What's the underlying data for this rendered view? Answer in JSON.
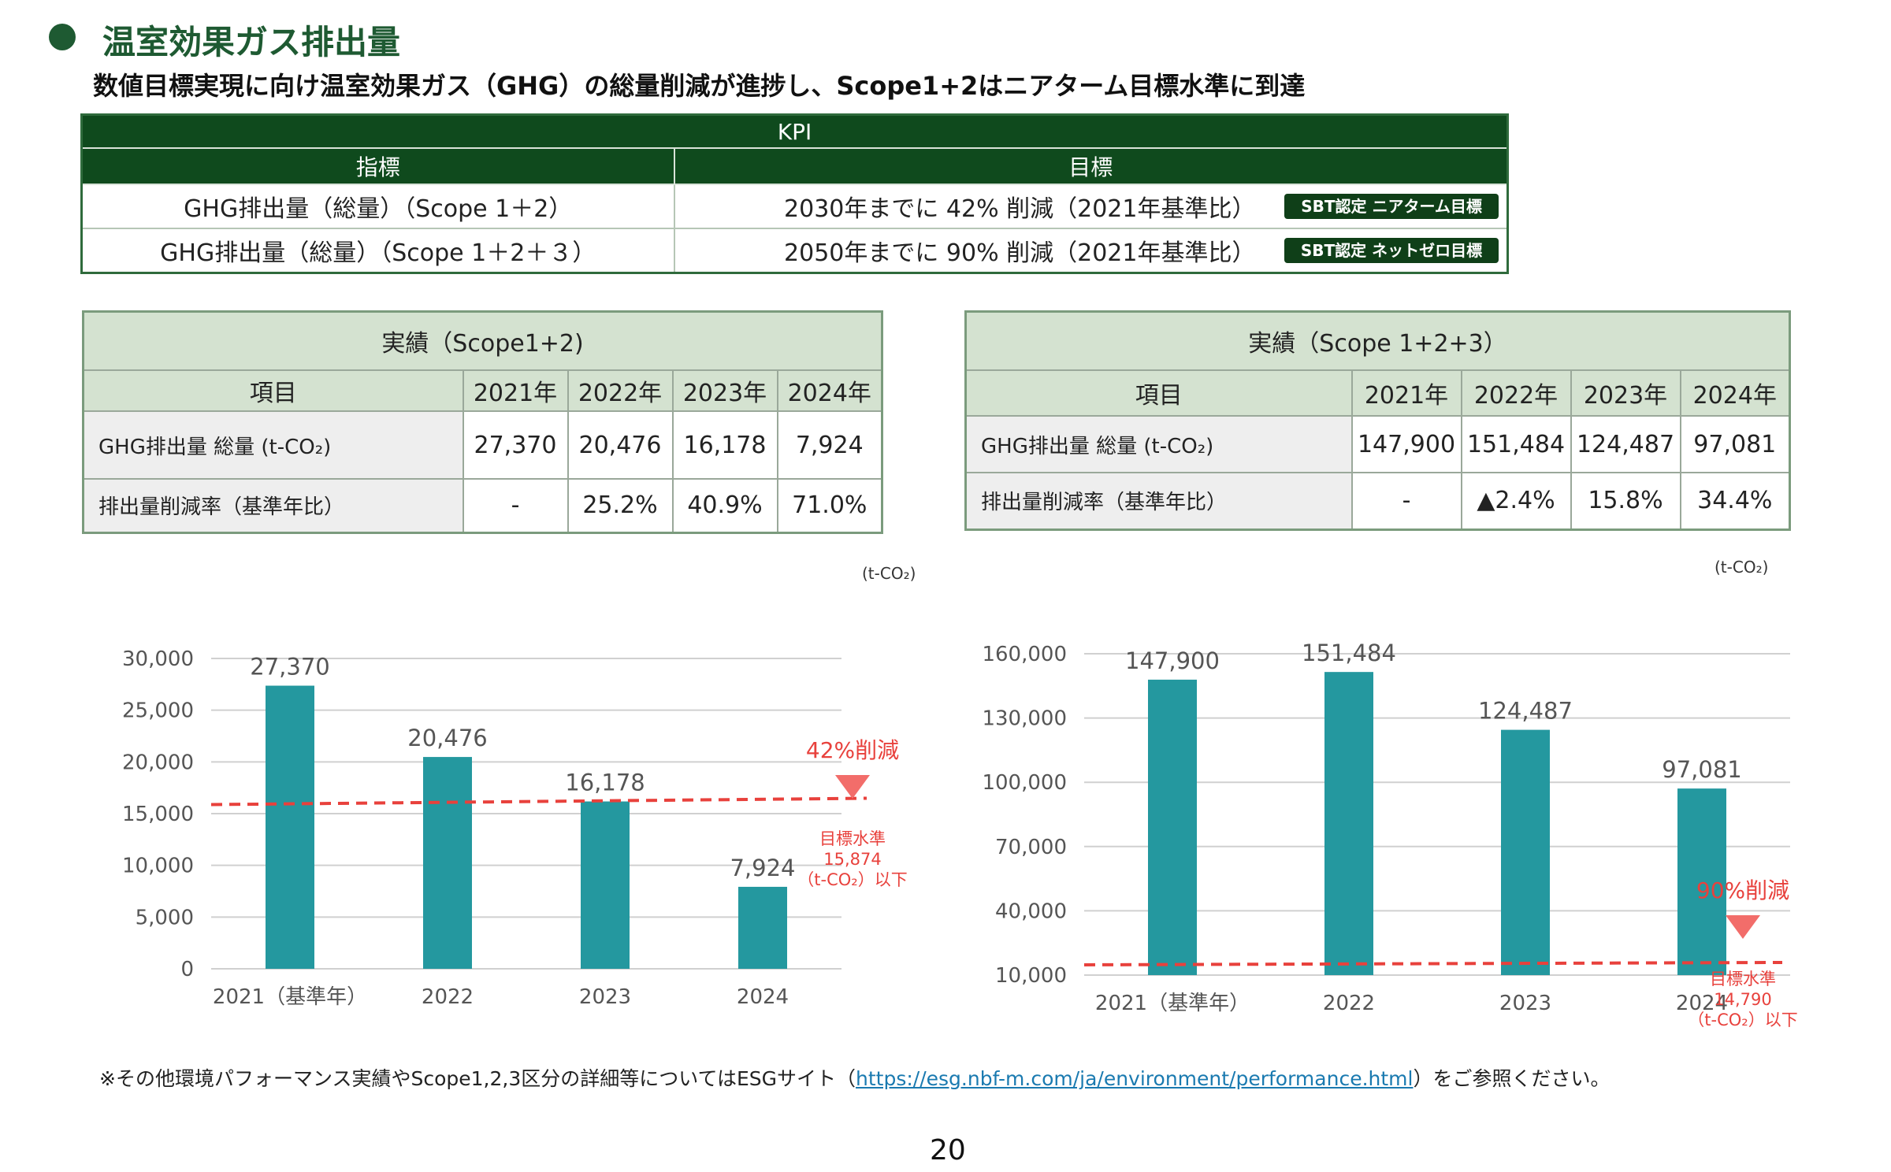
{
  "header": {
    "title": "温室効果ガス排出量",
    "subtitle": "数値目標実現に向け温室効果ガス（GHG）の総量削減が進捗し、Scope1+2はニアターム目標水準に到達"
  },
  "kpi": {
    "title": "KPI",
    "col_indicator": "指標",
    "col_target": "目標",
    "rows": [
      {
        "indicator": "GHG排出量（総量）（Scope 1＋2）",
        "target": "2030年までに 42% 削減（2021年基準比）",
        "badge": "SBT認定 ニアターム目標"
      },
      {
        "indicator": "GHG排出量（総量）（Scope 1＋2＋３）",
        "target": "2050年までに 90% 削減（2021年基準比）",
        "badge": "SBT認定 ネットゼロ目標"
      }
    ]
  },
  "results_s12": {
    "title": "実績（Scope1+2)",
    "item_header": "項目",
    "years": [
      "2021年",
      "2022年",
      "2023年",
      "2024年"
    ],
    "rows": [
      {
        "label": "GHG排出量 総量 (t-CO₂)",
        "values": [
          "27,370",
          "20,476",
          "16,178",
          "7,924"
        ]
      },
      {
        "label": "排出量削減率（基準年比）",
        "values": [
          "-",
          "25.2%",
          "40.9%",
          "71.0%"
        ]
      }
    ]
  },
  "results_s123": {
    "title": "実績（Scope 1+2+3）",
    "item_header": "項目",
    "years": [
      "2021年",
      "2022年",
      "2023年",
      "2024年"
    ],
    "rows": [
      {
        "label": "GHG排出量 総量 (t-CO₂)",
        "values": [
          "147,900",
          "151,484",
          "124,487",
          "97,081"
        ]
      },
      {
        "label": "排出量削減率（基準年比）",
        "values": [
          "-",
          "▲2.4%",
          "15.8%",
          "34.4%"
        ]
      }
    ]
  },
  "chart_data": [
    {
      "type": "bar",
      "unit_label": "(t-CO₂)",
      "categories": [
        "2021（基準年）",
        "2022",
        "2023",
        "2024"
      ],
      "values": [
        27370,
        20476,
        16178,
        7924
      ],
      "value_labels": [
        "27,370",
        "20,476",
        "16,178",
        "7,924"
      ],
      "ylim": [
        0,
        30000
      ],
      "yticks": [
        0,
        5000,
        10000,
        15000,
        20000,
        25000,
        30000
      ],
      "ytick_labels": [
        "0",
        "5,000",
        "10,000",
        "15,000",
        "20,000",
        "25,000",
        "30,000"
      ],
      "bar_color": "#24989f",
      "target_line": {
        "value": 15874,
        "color": "#e8413c"
      },
      "annotation": {
        "reduction": "42%削減",
        "lines": [
          "目標水準",
          "15,874",
          "（t-CO₂）以下"
        ],
        "color": "#e8413c"
      }
    },
    {
      "type": "bar",
      "unit_label": "(t-CO₂)",
      "categories": [
        "2021（基準年）",
        "2022",
        "2023",
        "2024"
      ],
      "values": [
        147900,
        151484,
        124487,
        97081
      ],
      "value_labels": [
        "147,900",
        "151,484",
        "124,487",
        "97,081"
      ],
      "ylim": [
        10000,
        160000
      ],
      "yticks": [
        10000,
        40000,
        70000,
        100000,
        130000,
        160000
      ],
      "ytick_labels": [
        "10,000",
        "40,000",
        "70,000",
        "100,000",
        "130,000",
        "160,000"
      ],
      "bar_color": "#24989f",
      "target_line": {
        "value": 14790,
        "color": "#e8413c"
      },
      "annotation": {
        "reduction": "90%削減",
        "lines": [
          "目標水準",
          "14,790",
          "（t-CO₂）以下"
        ],
        "color": "#e8413c"
      }
    }
  ],
  "footnote": {
    "prefix": "※その他環境パフォーマンス実績やScope1,2,3区分の詳細等についてはESGサイト（",
    "link": "https://esg.nbf-m.com/ja/environment/performance.html",
    "suffix": "）をご参照ください。"
  },
  "page_number": "20"
}
